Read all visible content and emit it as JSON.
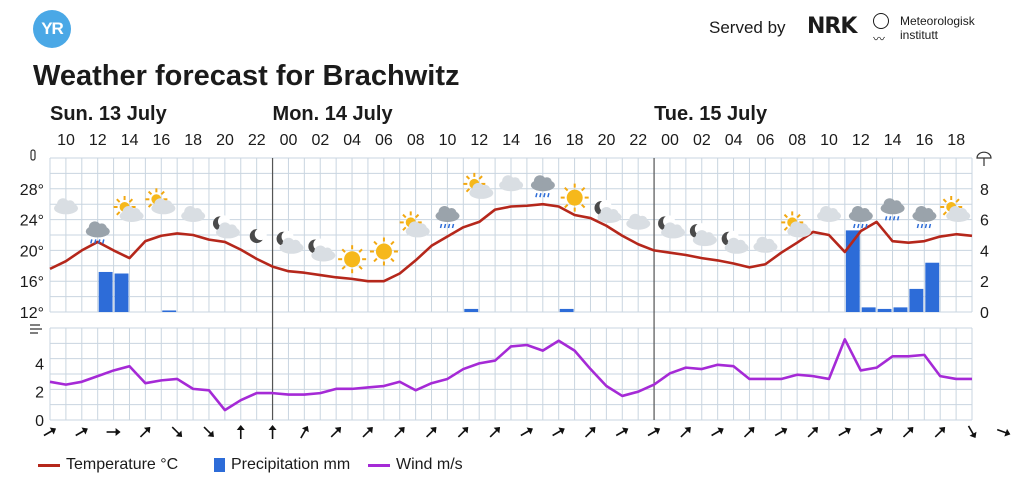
{
  "header": {
    "logo_text": "YR",
    "served_by": "Served by",
    "nrk_text": "NRK",
    "met_name_line1": "Meteorologisk",
    "met_name_line2": "institutt"
  },
  "colors": {
    "temperature": "#b5271b",
    "precipitation": "#2d6cd8",
    "wind": "#a52ad6",
    "grid": "#c9d5e0"
  },
  "chart_data": {
    "type": "line",
    "title": "Weather forecast for Brachwitz",
    "day_labels": [
      {
        "label": "Sun. 13 July",
        "hour_index": 0
      },
      {
        "label": "Mon. 14 July",
        "hour_index": 14
      },
      {
        "label": "Tue. 15 July",
        "hour_index": 38
      }
    ],
    "hour_labels": [
      "10",
      "12",
      "14",
      "16",
      "18",
      "20",
      "22",
      "00",
      "02",
      "04",
      "06",
      "08",
      "10",
      "12",
      "14",
      "16",
      "18",
      "20",
      "22",
      "00",
      "02",
      "04",
      "06",
      "08",
      "10",
      "12",
      "14",
      "16",
      "18"
    ],
    "temperature_axis": {
      "unit": "°C",
      "ticks": [
        "12°",
        "16°",
        "20°",
        "24°",
        "28°"
      ],
      "ylim": [
        12,
        32
      ]
    },
    "precip_axis": {
      "unit": "mm",
      "ticks": [
        "0",
        "2",
        "4",
        "6",
        "8"
      ],
      "ylim": [
        0,
        10
      ]
    },
    "wind_axis": {
      "unit": "m/s",
      "ticks": [
        "0",
        "2",
        "4"
      ],
      "ylim": [
        0,
        6.5
      ]
    },
    "series": [
      {
        "name": "Temperature °C",
        "key": "temperature",
        "kind": "line",
        "values": [
          17.6,
          18.6,
          20.0,
          21.1,
          20.0,
          19.0,
          21.2,
          21.9,
          22.2,
          22.0,
          21.4,
          21.1,
          20.1,
          18.9,
          17.9,
          17.3,
          17.1,
          16.8,
          16.5,
          16.3,
          16.0,
          16.0,
          17.0,
          18.7,
          20.6,
          21.8,
          23.0,
          23.7,
          25.3,
          25.7,
          25.8,
          26.0,
          25.7,
          24.6,
          24.2,
          23.2,
          21.9,
          20.8,
          20.0,
          19.7,
          19.4,
          19.0,
          18.7,
          18.3,
          17.8,
          18.2,
          19.7,
          21.0,
          22.4,
          22.0,
          19.8,
          22.5,
          23.7,
          21.2,
          21.0,
          21.2,
          21.8,
          22.1,
          21.9
        ]
      },
      {
        "name": "Precipitation mm",
        "key": "precipitation",
        "kind": "bar",
        "values": [
          0,
          0,
          0,
          2.6,
          2.5,
          0,
          0,
          0.1,
          0,
          0,
          0,
          0,
          0,
          0,
          0,
          0,
          0,
          0,
          0,
          0,
          0,
          0,
          0,
          0,
          0,
          0,
          0.2,
          0,
          0,
          0,
          0,
          0,
          0.2,
          0,
          0,
          0,
          0,
          0,
          0,
          0,
          0,
          0,
          0,
          0,
          0,
          0,
          0,
          0,
          0,
          0,
          5.3,
          0.3,
          0.2,
          0.3,
          1.5,
          3.2,
          0,
          0,
          0
        ]
      },
      {
        "name": "Wind m/s",
        "key": "wind",
        "kind": "line",
        "values": [
          2.7,
          2.5,
          2.7,
          3.1,
          3.5,
          3.8,
          2.6,
          2.8,
          2.9,
          2.2,
          2.1,
          0.7,
          1.4,
          1.9,
          1.9,
          1.8,
          1.8,
          1.9,
          2.2,
          2.2,
          2.3,
          2.4,
          2.7,
          2.1,
          2.6,
          2.9,
          3.6,
          4.0,
          4.2,
          5.2,
          5.3,
          4.9,
          5.6,
          4.9,
          3.6,
          2.4,
          1.7,
          2.0,
          2.5,
          3.3,
          3.7,
          3.6,
          3.9,
          3.8,
          2.9,
          2.9,
          2.9,
          3.2,
          3.1,
          2.9,
          5.7,
          3.5,
          3.7,
          4.5,
          4.5,
          4.6,
          3.1,
          2.9,
          2.9
        ]
      }
    ],
    "weather_icons": [
      "cloudy",
      "rain",
      "partly-sunny",
      "partly-sunny",
      "cloudy",
      "partly-night",
      "night",
      "partly-night",
      "partly-night",
      "sunny",
      "sunny",
      "partly-sunny",
      "rain",
      "partly-sunny",
      "cloudy",
      "rain",
      "sunny",
      "partly-night",
      "cloudy",
      "partly-night",
      "partly-night",
      "partly-night",
      "cloudy",
      "partly-sunny",
      "cloudy",
      "rain",
      "rain",
      "rain",
      "partly-sunny"
    ],
    "wind_directions_deg": [
      60,
      60,
      90,
      45,
      135,
      135,
      0,
      0,
      30,
      45,
      45,
      45,
      45,
      45,
      45,
      60,
      60,
      45,
      60,
      60,
      45,
      60,
      45,
      60,
      45,
      60,
      60,
      45,
      45,
      150,
      110
    ],
    "legend_position": "bottom-left",
    "grid": true
  }
}
